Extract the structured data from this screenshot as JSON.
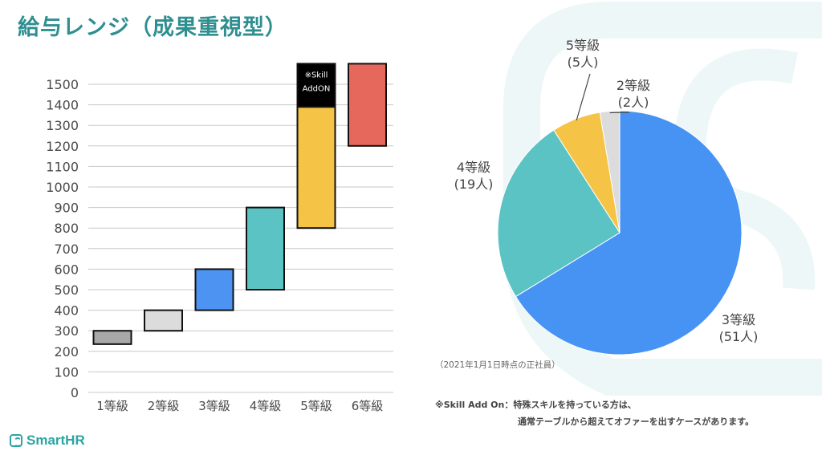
{
  "page": {
    "title": "給与レンジ（成果重視型）"
  },
  "branding": {
    "logo_text": "SmartHR"
  },
  "colors": {
    "title": "#2f8f90",
    "grid": "#bfbfbf",
    "axis_text": "#4a4a4a"
  },
  "chart_data": [
    {
      "type": "bar",
      "subtype": "floating-range",
      "categories": [
        "1等級",
        "2等級",
        "3等級",
        "4等級",
        "5等級",
        "6等級"
      ],
      "ylim": [
        0,
        1500
      ],
      "yticks": [
        0,
        100,
        200,
        300,
        400,
        500,
        600,
        700,
        800,
        900,
        1000,
        1100,
        1200,
        1300,
        1400,
        1500
      ],
      "grid": true,
      "ranges": [
        {
          "category": "1等級",
          "low": 235,
          "high": 300,
          "color": "#a8a8a8"
        },
        {
          "category": "2等級",
          "low": 300,
          "high": 400,
          "color": "#dcdcdc"
        },
        {
          "category": "3等級",
          "low": 400,
          "high": 600,
          "color": "#4d94f2"
        },
        {
          "category": "4等級",
          "low": 500,
          "high": 900,
          "color": "#5bc3c3"
        },
        {
          "category": "5等級",
          "low": 800,
          "high": 1390,
          "color": "#f5c446"
        },
        {
          "category": "6等級",
          "low": 1200,
          "high": 1600,
          "color": "#e6675c"
        }
      ],
      "addon": {
        "category": "5等級",
        "low": 1390,
        "high": 1600,
        "color": "#000000",
        "label_line1": "※Skill",
        "label_line2": "AddON"
      }
    },
    {
      "type": "pie",
      "slices": [
        {
          "label": "3等級",
          "count_label": "(51人)",
          "value": 51,
          "color": "#4793f3"
        },
        {
          "label": "4等級",
          "count_label": "(19人)",
          "value": 19,
          "color": "#5bc3c3"
        },
        {
          "label": "5等級",
          "count_label": "(5人)",
          "value": 5,
          "color": "#f5c446"
        },
        {
          "label": "2等級",
          "count_label": "(2人)",
          "value": 2,
          "color": "#dcdcdc"
        }
      ]
    }
  ],
  "notes": {
    "pie_footnote": "（2021年1月1日時点の正社員）",
    "skill_note_line1": "※Skill Add On：特殊スキルを持っている方は、",
    "skill_note_line2": "通常テーブルから超えてオファーを出すケースがあります。"
  }
}
